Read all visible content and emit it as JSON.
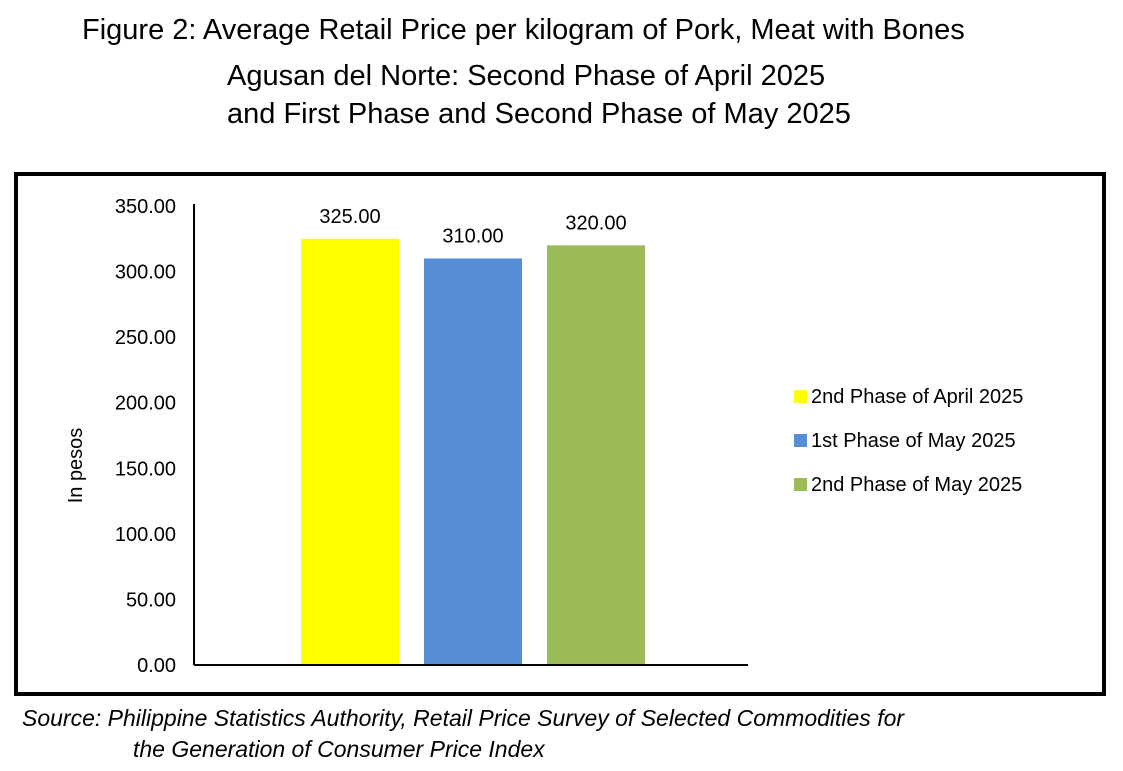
{
  "title_lines": [
    "Figure 2: Average Retail Price per kilogram of Pork, Meat with Bones",
    "Agusan del Norte: Second Phase of April 2025",
    "and First Phase and Second Phase of May 2025"
  ],
  "source_lines": [
    "Source: Philippine Statistics Authority, Retail Price Survey of Selected Commodities for",
    "the Generation of Consumer Price Index"
  ],
  "chart_data": {
    "type": "bar",
    "title": "Figure 2: Average Retail Price per kilogram of Pork, Meat with Bones Agusan del Norte: Second Phase of April 2025 and First Phase and Second Phase of May 2025",
    "ylabel": "In pesos",
    "xlabel": "",
    "ylim": [
      0,
      350
    ],
    "yticks": [
      "0.00",
      "50.00",
      "100.00",
      "150.00",
      "200.00",
      "250.00",
      "300.00",
      "350.00"
    ],
    "grid": false,
    "legend_position": "right",
    "series": [
      {
        "name": "2nd Phase of April 2025",
        "value": 325,
        "label": "325.00",
        "color": "#FFFF00"
      },
      {
        "name": "1st Phase of May 2025",
        "value": 310,
        "label": "310.00",
        "color": "#558ED5"
      },
      {
        "name": "2nd Phase of May 2025",
        "value": 320,
        "label": "320.00",
        "color": "#9BBB59"
      }
    ]
  }
}
